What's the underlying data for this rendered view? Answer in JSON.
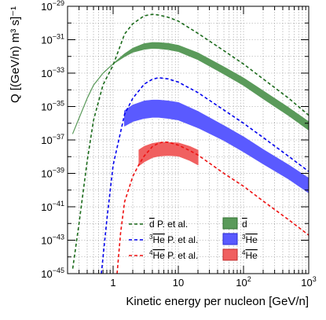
{
  "chart_data": {
    "type": "line",
    "xlabel": "Kinetic energy per nucleon [GeV/n]",
    "ylabel": "Q [(GeV/n) m³ s]⁻¹",
    "xscale": "log",
    "yscale": "log",
    "xlim": [
      0.2,
      1000
    ],
    "ylim": [
      1e-45,
      1e-29
    ],
    "grid": true,
    "legend_position": "bottom-center",
    "x_tick_labels": [
      {
        "value": 1,
        "mantissa": "1",
        "exp": ""
      },
      {
        "value": 10,
        "mantissa": "10",
        "exp": ""
      },
      {
        "value": 100,
        "mantissa": "10",
        "exp": "2"
      },
      {
        "value": 1000,
        "mantissa": "10",
        "exp": "3"
      }
    ],
    "y_tick_labels": [
      {
        "value": 1e-29,
        "mantissa": "10",
        "exp": "−29"
      },
      {
        "value": 1e-31,
        "mantissa": "10",
        "exp": "−31"
      },
      {
        "value": 1e-33,
        "mantissa": "10",
        "exp": "−33"
      },
      {
        "value": 1e-35,
        "mantissa": "10",
        "exp": "−35"
      },
      {
        "value": 1e-37,
        "mantissa": "10",
        "exp": "−37"
      },
      {
        "value": 1e-39,
        "mantissa": "10",
        "exp": "−39"
      },
      {
        "value": 1e-41,
        "mantissa": "10",
        "exp": "−41"
      },
      {
        "value": 1e-43,
        "mantissa": "10",
        "exp": "−43"
      },
      {
        "value": 1e-45,
        "mantissa": "10",
        "exp": "−45"
      }
    ],
    "series": [
      {
        "name": "d̅ P. et al.",
        "type": "line",
        "style": "dashed",
        "color": "#1a6a1a",
        "x": [
          0.24,
          0.3,
          0.4,
          0.5,
          0.7,
          1,
          1.5,
          2,
          3,
          4,
          5,
          7,
          10,
          20,
          50,
          100,
          200,
          500,
          1000
        ],
        "y": [
          2e-45,
          1e-42,
          5.5e-39,
          1.5e-36,
          2e-34,
          3e-33,
          2.2e-31,
          9e-31,
          2.7e-30,
          3.3e-30,
          3e-30,
          2.2e-30,
          1.3e-30,
          2.4e-31,
          2.2e-32,
          3.5e-33,
          4.5e-34,
          3e-35,
          3e-36
        ]
      },
      {
        "name": "³He̅ P. et al.",
        "type": "line",
        "style": "dashed",
        "color": "#0000ee",
        "x": [
          0.66,
          0.8,
          1,
          1.5,
          2,
          3,
          4,
          5,
          7,
          10,
          20,
          50,
          100,
          200,
          500,
          1000
        ],
        "y": [
          1e-45,
          1.6e-42,
          3.1e-39,
          3.5e-36,
          3.1e-35,
          2.2e-34,
          4.3e-34,
          5.3e-34,
          4.5e-34,
          2.9e-34,
          6.8e-35,
          6.2e-36,
          1e-36,
          1.4e-37,
          1e-38,
          1.3e-39
        ]
      },
      {
        "name": "⁴He̅ P. et al.",
        "type": "line",
        "style": "dashed",
        "color": "#ee1111",
        "x": [
          1.15,
          1.3,
          1.5,
          2,
          2.5,
          3,
          4,
          5,
          6,
          7,
          10,
          15,
          20,
          50,
          100,
          200,
          500,
          1000
        ],
        "y": [
          1e-45,
          2.6e-43,
          2e-41,
          6.5e-40,
          3.5e-39,
          1.1e-38,
          4e-38,
          6.5e-38,
          7.6e-38,
          7.3e-38,
          4.9e-38,
          2.3e-38,
          1.25e-38,
          1e-39,
          1.7e-40,
          2.2e-41,
          1.6e-42,
          2e-43
        ]
      },
      {
        "name": "d̅",
        "type": "band",
        "color": "#5a9a5a",
        "x": [
          0.24,
          0.3,
          0.4,
          0.5,
          0.7,
          1,
          1.5,
          2,
          3,
          4,
          5,
          7,
          10,
          20,
          50,
          100,
          200,
          500,
          1000
        ],
        "y_low": [
          2.4e-37,
          2e-36,
          3.1e-35,
          1.9e-34,
          1e-33,
          3.6e-33,
          1e-32,
          1.8e-32,
          2.7e-32,
          3.1e-32,
          3e-32,
          2.6e-32,
          2e-32,
          6.5e-33,
          9e-34,
          1.9e-34,
          3e-35,
          2.8e-36,
          4e-37
        ],
        "y_high": [
          2.4e-37,
          2e-36,
          3.1e-35,
          1.9e-34,
          1e-33,
          3.6e-33,
          1.4e-32,
          3e-32,
          5.7e-32,
          6.7e-32,
          6.6e-32,
          5.9e-32,
          4.5e-32,
          1.6e-32,
          2.3e-33,
          5e-34,
          8.5e-35,
          8e-36,
          1.2e-36
        ]
      },
      {
        "name": "³He̅",
        "type": "band",
        "color": "#5a5aff",
        "x": [
          1.5,
          2,
          3,
          4,
          5,
          7,
          10,
          20,
          50,
          100,
          200,
          500,
          1000
        ],
        "y_low": [
          7e-37,
          1.3e-36,
          2e-36,
          2.3e-36,
          2.3e-36,
          2e-36,
          1.6e-36,
          5.5e-37,
          9.5e-38,
          2e-38,
          3.8e-39,
          4.5e-40,
          7e-41
        ],
        "y_high": [
          5.5e-36,
          1.2e-35,
          2.1e-35,
          2.4e-35,
          2.4e-35,
          2.1e-35,
          1.7e-35,
          5e-36,
          7e-37,
          1.5e-37,
          2.6e-38,
          3e-39,
          5e-40
        ]
      },
      {
        "name": "⁴He̅",
        "type": "band",
        "color": "#f06060",
        "x": [
          2.5,
          3,
          4,
          5,
          7,
          10,
          15,
          20
        ],
        "y_low": [
          3e-39,
          5e-39,
          9e-39,
          1.1e-38,
          1.2e-38,
          1.1e-38,
          6e-39,
          3.3e-39
        ],
        "y_high": [
          2.5e-38,
          4e-38,
          6e-38,
          7e-38,
          7e-38,
          6.5e-38,
          4e-38,
          2.4e-38
        ]
      }
    ],
    "legend": [
      {
        "base": "d",
        "over": "d",
        "pre_sup": "",
        "suffix": " P. et al.",
        "kind": "line",
        "color": "#1a6a1a"
      },
      {
        "base": "",
        "over": "He",
        "pre_sup": "3",
        "suffix": " P. et al.",
        "kind": "line",
        "color": "#0000ee"
      },
      {
        "base": "",
        "over": "He",
        "pre_sup": "4",
        "suffix": " P. et al.",
        "kind": "line",
        "color": "#ee1111"
      },
      {
        "base": "",
        "over": "d",
        "pre_sup": "",
        "suffix": "",
        "kind": "box",
        "color": "#5a9a5a",
        "edge": "#2f6f2f"
      },
      {
        "base": "",
        "over": "He",
        "pre_sup": "3",
        "suffix": "",
        "kind": "box",
        "color": "#5a5aff",
        "edge": "#2a2ad0"
      },
      {
        "base": "",
        "over": "He",
        "pre_sup": "4",
        "suffix": "",
        "kind": "box",
        "color": "#f06060",
        "edge": "#c02a2a"
      }
    ]
  }
}
